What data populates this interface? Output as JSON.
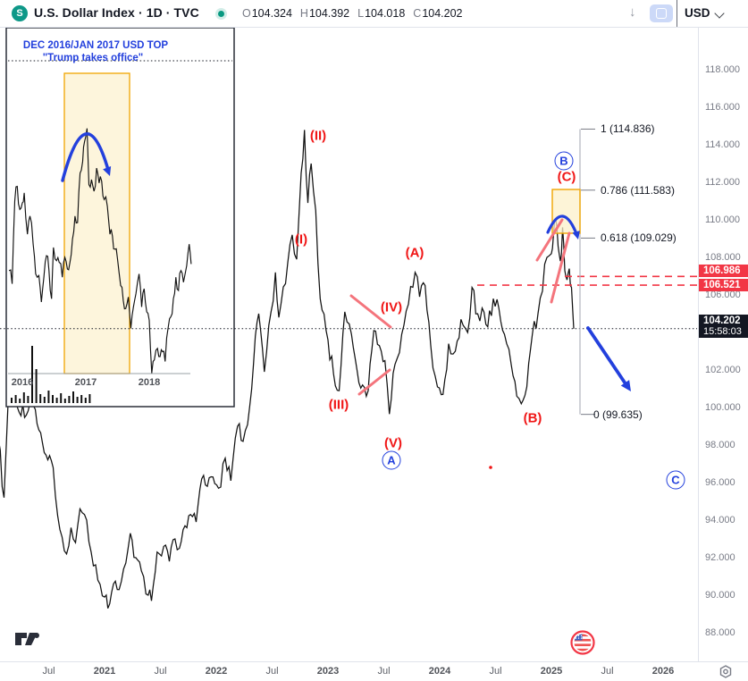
{
  "toolbar": {
    "symbol_initial": "S",
    "title": "U.S. Dollar Index · 1D · TVC",
    "market_status": "open",
    "ohlc": [
      {
        "k": "O",
        "v": "104.324"
      },
      {
        "k": "H",
        "v": "104.392"
      },
      {
        "k": "L",
        "v": "104.018"
      },
      {
        "k": "C",
        "v": "104.202"
      }
    ],
    "currency": "USD"
  },
  "inset": {
    "title": "DEC 2016/JAN 2017 USD TOP",
    "subtitle": "\"Trump takes office\"",
    "x_labels": [
      {
        "label": "2016",
        "d": 2016
      },
      {
        "label": "2017",
        "d": 2017
      },
      {
        "label": "2018",
        "d": 2018
      }
    ]
  },
  "price_axis": {
    "labels": [
      "118.000",
      "116.000",
      "114.000",
      "112.000",
      "110.000",
      "108.000",
      "106.000",
      "102.000",
      "100.000",
      "98.000",
      "96.000",
      "94.000",
      "92.000",
      "90.000",
      "88.000"
    ],
    "badges": [
      {
        "value": "106.986",
        "type": "alert"
      },
      {
        "value": "106.521",
        "type": "alert"
      },
      {
        "value": "104.202",
        "time": "15:58:03",
        "type": "last"
      }
    ]
  },
  "time_axis": [
    {
      "label": "Jul",
      "d": 2020.5
    },
    {
      "label": "2021",
      "d": 2021
    },
    {
      "label": "Jul",
      "d": 2021.5
    },
    {
      "label": "2022",
      "d": 2022
    },
    {
      "label": "Jul",
      "d": 2022.5
    },
    {
      "label": "2023",
      "d": 2023
    },
    {
      "label": "Jul",
      "d": 2023.5
    },
    {
      "label": "2024",
      "d": 2024
    },
    {
      "label": "Jul",
      "d": 2024.5
    },
    {
      "label": "2025",
      "d": 2025
    },
    {
      "label": "Jul",
      "d": 2025.5
    },
    {
      "label": "2026",
      "d": 2026
    }
  ],
  "fibonacci": {
    "levels": [
      {
        "ratio": "1",
        "price": 114.836,
        "label": "1 (114.836)"
      },
      {
        "ratio": "0.786",
        "price": 111.583,
        "label": "0.786 (111.583)"
      },
      {
        "ratio": "0.618",
        "price": 109.029,
        "label": "0.618 (109.029)"
      },
      {
        "ratio": "0",
        "price": 99.635,
        "label": "0 (99.635)"
      }
    ]
  },
  "elliott": {
    "red_labels": [
      "(I)",
      "(II)",
      "(III)",
      "(IV)",
      "(V)",
      "(A)",
      "(B)",
      "(C)"
    ],
    "circled": [
      "A",
      "B",
      "C"
    ]
  },
  "levels": {
    "resistance_dashed": [
      106.986,
      106.521
    ],
    "last_price": 104.202,
    "last_time": "15:58:03"
  },
  "chart_data": [
    {
      "type": "bar",
      "name": "U.S. Dollar Index (TVC:DXY) daily, main panel",
      "x_unit": "decimal_year",
      "y_unit": "index_level",
      "xlim": [
        2020.05,
        2026.2
      ],
      "ylim": [
        87,
        119
      ],
      "key_points": {
        "wave_II_high_sep2022": 114.79,
        "wave_A_low_jul2023": 99.58,
        "wave_A_high_oct2023": 107.3,
        "wave_B_low_sep2024": 100.16,
        "wave_B_high_jan2025": 110.0,
        "last_close": 104.202
      },
      "path_keypoints": [
        [
          2020.05,
          98.3
        ],
        [
          2020.1,
          95.2
        ],
        [
          2020.16,
          102.9
        ],
        [
          2020.22,
          100.0
        ],
        [
          2020.3,
          99.6
        ],
        [
          2020.38,
          99.9
        ],
        [
          2020.46,
          97.6
        ],
        [
          2020.54,
          96.8
        ],
        [
          2020.6,
          93.5
        ],
        [
          2020.66,
          92.2
        ],
        [
          2020.7,
          93.6
        ],
        [
          2020.74,
          92.8
        ],
        [
          2020.78,
          94.6
        ],
        [
          2020.84,
          94.0
        ],
        [
          2020.88,
          92.3
        ],
        [
          2020.94,
          90.8
        ],
        [
          2021.0,
          89.9
        ],
        [
          2021.03,
          89.3
        ],
        [
          2021.08,
          90.6
        ],
        [
          2021.13,
          90.3
        ],
        [
          2021.17,
          91.4
        ],
        [
          2021.23,
          93.3
        ],
        [
          2021.28,
          92.0
        ],
        [
          2021.33,
          91.3
        ],
        [
          2021.39,
          90.0
        ],
        [
          2021.42,
          89.7
        ],
        [
          2021.47,
          92.3
        ],
        [
          2021.53,
          92.6
        ],
        [
          2021.58,
          91.8
        ],
        [
          2021.63,
          93.0
        ],
        [
          2021.67,
          92.5
        ],
        [
          2021.72,
          93.7
        ],
        [
          2021.77,
          94.3
        ],
        [
          2021.82,
          93.9
        ],
        [
          2021.87,
          96.2
        ],
        [
          2021.92,
          95.8
        ],
        [
          2021.97,
          96.3
        ],
        [
          2022.02,
          95.7
        ],
        [
          2022.08,
          97.3
        ],
        [
          2022.13,
          96.1
        ],
        [
          2022.19,
          99.0
        ],
        [
          2022.24,
          98.2
        ],
        [
          2022.3,
          100.1
        ],
        [
          2022.35,
          103.8
        ],
        [
          2022.38,
          105.0
        ],
        [
          2022.43,
          101.9
        ],
        [
          2022.49,
          105.1
        ],
        [
          2022.53,
          107.2
        ],
        [
          2022.56,
          104.8
        ],
        [
          2022.62,
          106.6
        ],
        [
          2022.68,
          109.2
        ],
        [
          2022.72,
          107.9
        ],
        [
          2022.76,
          112.5
        ],
        [
          2022.79,
          114.79
        ],
        [
          2022.82,
          110.9
        ],
        [
          2022.85,
          113.0
        ],
        [
          2022.89,
          110.5
        ],
        [
          2022.93,
          105.8
        ],
        [
          2023.0,
          103.6
        ],
        [
          2023.05,
          101.8
        ],
        [
          2023.1,
          100.9
        ],
        [
          2023.15,
          105.1
        ],
        [
          2023.21,
          103.9
        ],
        [
          2023.26,
          102.0
        ],
        [
          2023.31,
          101.2
        ],
        [
          2023.36,
          100.9
        ],
        [
          2023.41,
          104.1
        ],
        [
          2023.46,
          103.3
        ],
        [
          2023.51,
          102.5
        ],
        [
          2023.55,
          99.65
        ],
        [
          2023.6,
          102.3
        ],
        [
          2023.66,
          103.9
        ],
        [
          2023.72,
          105.5
        ],
        [
          2023.78,
          107.2
        ],
        [
          2023.82,
          105.9
        ],
        [
          2023.87,
          106.5
        ],
        [
          2023.92,
          103.3
        ],
        [
          2023.98,
          101.1
        ],
        [
          2024.03,
          100.7
        ],
        [
          2024.08,
          103.4
        ],
        [
          2024.14,
          103.0
        ],
        [
          2024.19,
          104.7
        ],
        [
          2024.25,
          104.0
        ],
        [
          2024.29,
          106.4
        ],
        [
          2024.34,
          105.0
        ],
        [
          2024.38,
          105.3
        ],
        [
          2024.43,
          104.3
        ],
        [
          2024.48,
          105.8
        ],
        [
          2024.53,
          105.3
        ],
        [
          2024.58,
          103.9
        ],
        [
          2024.64,
          102.3
        ],
        [
          2024.69,
          100.6
        ],
        [
          2024.73,
          100.2
        ],
        [
          2024.78,
          101.1
        ],
        [
          2024.83,
          103.9
        ],
        [
          2024.88,
          105.0
        ],
        [
          2024.92,
          106.2
        ],
        [
          2024.96,
          108.0
        ],
        [
          2025.0,
          108.2
        ],
        [
          2025.02,
          109.3
        ],
        [
          2025.04,
          110.0
        ],
        [
          2025.06,
          108.6
        ],
        [
          2025.08,
          107.8
        ],
        [
          2025.1,
          109.6
        ],
        [
          2025.12,
          107.3
        ],
        [
          2025.14,
          106.8
        ],
        [
          2025.16,
          107.4
        ],
        [
          2025.18,
          106.4
        ],
        [
          2025.2,
          104.2
        ]
      ]
    },
    {
      "type": "bar",
      "name": "Inset: USD index 2016-2018 top (Trump takes office)",
      "x_unit": "decimal_year",
      "y_unit": "index_level",
      "xlim": [
        2015.78,
        2018.7
      ],
      "ylim": [
        88,
        105
      ],
      "path_keypoints": [
        [
          2015.79,
          95.0
        ],
        [
          2015.84,
          94.2
        ],
        [
          2015.88,
          99.2
        ],
        [
          2015.92,
          100.1
        ],
        [
          2015.96,
          98.7
        ],
        [
          2016.0,
          99.1
        ],
        [
          2016.03,
          99.7
        ],
        [
          2016.08,
          97.2
        ],
        [
          2016.12,
          98.3
        ],
        [
          2016.17,
          96.6
        ],
        [
          2016.21,
          94.8
        ],
        [
          2016.26,
          94.7
        ],
        [
          2016.3,
          93.1
        ],
        [
          2016.34,
          94.6
        ],
        [
          2016.38,
          95.9
        ],
        [
          2016.42,
          95.0
        ],
        [
          2016.46,
          93.3
        ],
        [
          2016.49,
          96.4
        ],
        [
          2016.54,
          95.6
        ],
        [
          2016.58,
          95.5
        ],
        [
          2016.63,
          94.6
        ],
        [
          2016.67,
          95.8
        ],
        [
          2016.71,
          95.1
        ],
        [
          2016.75,
          95.5
        ],
        [
          2016.79,
          96.9
        ],
        [
          2016.83,
          98.3
        ],
        [
          2016.87,
          97.9
        ],
        [
          2016.91,
          100.9
        ],
        [
          2016.95,
          101.6
        ],
        [
          2016.98,
          102.8
        ],
        [
          2017.02,
          103.6
        ],
        [
          2017.05,
          100.2
        ],
        [
          2017.09,
          100.5
        ],
        [
          2017.13,
          99.8
        ],
        [
          2017.17,
          101.2
        ],
        [
          2017.21,
          100.3
        ],
        [
          2017.25,
          100.4
        ],
        [
          2017.29,
          99.3
        ],
        [
          2017.34,
          98.9
        ],
        [
          2017.38,
          97.2
        ],
        [
          2017.42,
          97.1
        ],
        [
          2017.46,
          96.3
        ],
        [
          2017.5,
          95.7
        ],
        [
          2017.55,
          94.1
        ],
        [
          2017.59,
          93.2
        ],
        [
          2017.63,
          92.7
        ],
        [
          2017.67,
          93.4
        ],
        [
          2017.71,
          91.5
        ],
        [
          2017.75,
          92.8
        ],
        [
          2017.79,
          93.6
        ],
        [
          2017.84,
          94.8
        ],
        [
          2017.88,
          92.8
        ],
        [
          2017.92,
          93.9
        ],
        [
          2017.96,
          92.5
        ],
        [
          2018.0,
          92.0
        ],
        [
          2018.04,
          88.8
        ],
        [
          2018.08,
          89.6
        ],
        [
          2018.13,
          90.3
        ],
        [
          2018.17,
          89.8
        ],
        [
          2018.21,
          90.1
        ],
        [
          2018.25,
          89.5
        ],
        [
          2018.3,
          91.6
        ],
        [
          2018.34,
          92.2
        ],
        [
          2018.38,
          93.3
        ],
        [
          2018.42,
          94.6
        ],
        [
          2018.46,
          93.8
        ],
        [
          2018.5,
          95.0
        ],
        [
          2018.54,
          94.3
        ],
        [
          2018.59,
          95.3
        ],
        [
          2018.63,
          96.6
        ],
        [
          2018.66,
          95.4
        ]
      ],
      "volume_bars": [
        6,
        9,
        5,
        12,
        8,
        64,
        38,
        10,
        7,
        14,
        9,
        6,
        11,
        5,
        8,
        13,
        7,
        9,
        6,
        10
      ]
    }
  ],
  "colors": {
    "badge_red": "#f23645",
    "badge_black": "#131722",
    "annotation_blue": "#2340dd",
    "wave_red": "#f01616",
    "trendline_salmon": "#f4747c",
    "box_fill": "#fcf0c9",
    "box_stroke": "#f0a500",
    "bar_black": "#111111",
    "fib_line_gray": "#b2b5be"
  }
}
